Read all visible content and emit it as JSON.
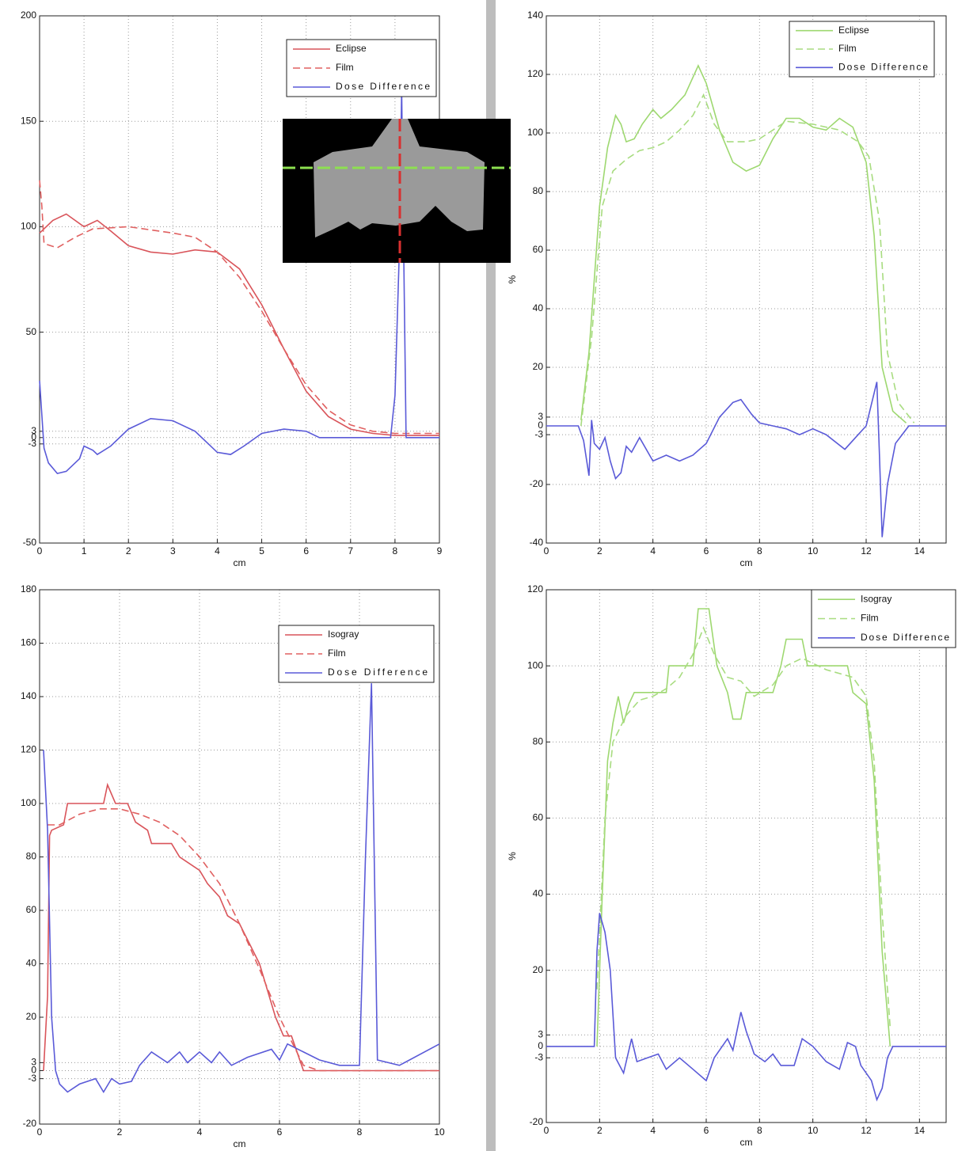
{
  "chart_data": [
    {
      "type": "line",
      "xlabel": "cm",
      "xlim": [
        0,
        9
      ],
      "ylim": [
        -50,
        200
      ],
      "xticks": [
        0,
        1,
        2,
        3,
        4,
        5,
        6,
        7,
        8,
        9
      ],
      "yticks": [
        -50,
        -3,
        0,
        3,
        50,
        100,
        150,
        200
      ],
      "grid": true,
      "legend": "upper right",
      "series": [
        {
          "name": "Eclipse",
          "color": "#d9545a",
          "dash": false,
          "x": [
            0,
            0.3,
            0.6,
            1.0,
            1.3,
            1.6,
            2.0,
            2.5,
            3.0,
            3.5,
            4.0,
            4.5,
            5.0,
            5.5,
            6.0,
            6.5,
            7.0,
            7.5,
            8.0,
            9.0
          ],
          "values": [
            97,
            103,
            106,
            100,
            103,
            98,
            91,
            88,
            87,
            89,
            88,
            80,
            63,
            42,
            22,
            10,
            4,
            2,
            1,
            1
          ]
        },
        {
          "name": "Film",
          "color": "#e06060",
          "dash": true,
          "x": [
            0,
            0.05,
            0.1,
            0.4,
            0.8,
            1.2,
            2.0,
            3.0,
            3.5,
            4.0,
            4.5,
            5.0,
            5.5,
            6.0,
            6.5,
            7.0,
            7.5,
            8.0,
            9.0
          ],
          "values": [
            122,
            110,
            92,
            90,
            95,
            99,
            100,
            97,
            95,
            88,
            76,
            60,
            42,
            25,
            13,
            6,
            3,
            2,
            2
          ]
        },
        {
          "name": "Dose Difference",
          "color": "#5a5ad8",
          "dash": false,
          "x": [
            0,
            0.1,
            0.2,
            0.4,
            0.6,
            0.9,
            1.0,
            1.2,
            1.3,
            1.6,
            2.0,
            2.5,
            3.0,
            3.5,
            4.0,
            4.3,
            4.6,
            5.0,
            5.5,
            6.0,
            6.3,
            7.0,
            7.9,
            8.0,
            8.1,
            8.15,
            8.25,
            9.0
          ],
          "values": [
            27,
            -5,
            -12,
            -17,
            -16,
            -10,
            -4,
            -6,
            -8,
            -4,
            4,
            9,
            8,
            3,
            -7,
            -8,
            -4,
            2,
            4,
            3,
            0,
            0,
            0,
            20,
            90,
            165,
            0,
            0
          ]
        }
      ]
    },
    {
      "type": "line",
      "xlabel": "cm",
      "ylabel": "%",
      "xlim": [
        0,
        15
      ],
      "ylim": [
        -40,
        140
      ],
      "xticks": [
        0,
        2,
        4,
        6,
        8,
        10,
        12,
        14
      ],
      "yticks": [
        -40,
        -20,
        -3,
        0,
        3,
        20,
        40,
        60,
        80,
        100,
        120,
        140
      ],
      "grid": true,
      "legend": "upper right",
      "series": [
        {
          "name": "Eclipse",
          "color": "#9ed870",
          "dash": false,
          "x": [
            1.3,
            1.6,
            2.0,
            2.3,
            2.6,
            2.8,
            3.0,
            3.3,
            3.6,
            4.0,
            4.3,
            4.7,
            5.2,
            5.7,
            6.0,
            6.5,
            7.0,
            7.5,
            8.0,
            8.5,
            9.0,
            9.5,
            10,
            10.5,
            11,
            11.5,
            12,
            12.3,
            12.6,
            13,
            13.5
          ],
          "values": [
            2,
            25,
            75,
            95,
            106,
            103,
            97,
            98,
            103,
            108,
            105,
            108,
            113,
            123,
            117,
            101,
            90,
            87,
            89,
            98,
            105,
            105,
            102,
            101,
            105,
            102,
            90,
            65,
            20,
            5,
            1
          ]
        },
        {
          "name": "Film",
          "color": "#a8dc80",
          "dash": true,
          "x": [
            1.3,
            1.7,
            2.1,
            2.5,
            3,
            3.5,
            4,
            4.5,
            5,
            5.5,
            5.9,
            6.3,
            6.8,
            7.5,
            8,
            8.5,
            9,
            10,
            11,
            11.7,
            12.1,
            12.5,
            12.8,
            13.2,
            13.8
          ],
          "values": [
            0,
            30,
            75,
            87,
            91,
            94,
            95,
            97,
            101,
            106,
            113,
            103,
            97,
            97,
            98,
            101,
            104,
            103,
            101,
            97,
            92,
            70,
            25,
            8,
            1
          ]
        },
        {
          "name": "Dose Difference",
          "color": "#5a5ad8",
          "dash": false,
          "x": [
            0,
            1.2,
            1.4,
            1.6,
            1.7,
            1.8,
            2.0,
            2.2,
            2.4,
            2.6,
            2.8,
            3.0,
            3.2,
            3.5,
            4.0,
            4.5,
            5.0,
            5.5,
            6.0,
            6.5,
            7.0,
            7.3,
            7.7,
            8.0,
            8.5,
            9.0,
            9.5,
            10,
            10.5,
            11.2,
            11.7,
            12.0,
            12.4,
            12.5,
            12.6,
            12.8,
            13.1,
            13.6,
            15
          ],
          "values": [
            0,
            0,
            -5,
            -17,
            2,
            -6,
            -8,
            -4,
            -12,
            -18,
            -16,
            -7,
            -9,
            -4,
            -12,
            -10,
            -12,
            -10,
            -6,
            3,
            8,
            9,
            4,
            1,
            0,
            -1,
            -3,
            -1,
            -3,
            -8,
            -3,
            0,
            15,
            -10,
            -38,
            -20,
            -6,
            0,
            0
          ]
        }
      ]
    },
    {
      "type": "line",
      "xlabel": "cm",
      "xlim": [
        0,
        10
      ],
      "ylim": [
        -20,
        180
      ],
      "xticks": [
        0,
        2,
        4,
        6,
        8,
        10
      ],
      "yticks": [
        -20,
        -3,
        0,
        3,
        20,
        40,
        60,
        80,
        100,
        120,
        140,
        160,
        180
      ],
      "grid": true,
      "legend": "upper right",
      "series": [
        {
          "name": "Isogray",
          "color": "#d9545a",
          "dash": false,
          "x": [
            0.1,
            0.2,
            0.25,
            0.3,
            0.6,
            0.7,
            1.6,
            1.7,
            1.9,
            2.2,
            2.4,
            2.7,
            2.8,
            3.3,
            3.5,
            4.0,
            4.2,
            4.5,
            4.7,
            5.0,
            5.5,
            5.9,
            6.1,
            6.3,
            6.6,
            10
          ],
          "values": [
            0,
            28,
            88,
            90,
            92,
            100,
            100,
            107,
            100,
            100,
            93,
            90,
            85,
            85,
            80,
            75,
            70,
            65,
            58,
            55,
            40,
            20,
            13,
            13,
            0,
            0
          ]
        },
        {
          "name": "Film",
          "color": "#e06060",
          "dash": true,
          "x": [
            0.2,
            0.5,
            1,
            1.5,
            2,
            2.5,
            3,
            3.5,
            4,
            4.5,
            5,
            5.5,
            6,
            6.4,
            6.6,
            7,
            10
          ],
          "values": [
            92,
            92,
            96,
            98,
            98,
            96,
            93,
            88,
            80,
            70,
            55,
            38,
            20,
            8,
            2,
            0,
            0
          ]
        },
        {
          "name": "Dose Difference",
          "color": "#5a5ad8",
          "dash": false,
          "x": [
            0.1,
            0.2,
            0.3,
            0.4,
            0.5,
            0.7,
            1,
            1.4,
            1.6,
            1.8,
            2,
            2.3,
            2.5,
            2.8,
            3.2,
            3.5,
            3.7,
            4.0,
            4.3,
            4.5,
            4.8,
            5.2,
            5.8,
            6.0,
            6.2,
            6.6,
            7.0,
            7.5,
            8.0,
            8.15,
            8.3,
            8.45,
            9.0,
            10.0
          ],
          "values": [
            120,
            90,
            20,
            0,
            -5,
            -8,
            -5,
            -3,
            -8,
            -3,
            -5,
            -4,
            2,
            7,
            3,
            7,
            3,
            7,
            3,
            7,
            2,
            5,
            8,
            4,
            10,
            7,
            4,
            2,
            2,
            80,
            145,
            4,
            2,
            10
          ]
        }
      ]
    },
    {
      "type": "line",
      "xlabel": "cm",
      "ylabel": "%",
      "xlim": [
        0,
        15
      ],
      "ylim": [
        -20,
        120
      ],
      "xticks": [
        0,
        2,
        4,
        6,
        8,
        10,
        12,
        14
      ],
      "yticks": [
        -20,
        -3,
        0,
        3,
        20,
        40,
        60,
        80,
        100,
        120
      ],
      "grid": true,
      "legend": "upper right",
      "series": [
        {
          "name": "Isogray",
          "color": "#9ed870",
          "dash": false,
          "x": [
            1.9,
            2.1,
            2.3,
            2.5,
            2.7,
            2.9,
            3.1,
            3.3,
            4.5,
            4.6,
            5.5,
            5.7,
            6.1,
            6.4,
            6.8,
            7.0,
            7.3,
            7.5,
            8.5,
            8.8,
            9.0,
            9.6,
            9.8,
            11.3,
            11.5,
            12.0,
            12.3,
            12.6,
            12.9
          ],
          "values": [
            0,
            40,
            75,
            85,
            92,
            85,
            90,
            93,
            93,
            100,
            100,
            115,
            115,
            100,
            93,
            86,
            86,
            93,
            93,
            100,
            107,
            107,
            100,
            100,
            93,
            90,
            70,
            25,
            0
          ]
        },
        {
          "name": "Film",
          "color": "#a8dc80",
          "dash": true,
          "x": [
            1.9,
            2.2,
            2.5,
            3,
            3.5,
            4,
            4.5,
            5,
            5.5,
            5.9,
            6.3,
            6.8,
            7.3,
            7.8,
            8.5,
            9,
            9.6,
            10.5,
            11.5,
            12,
            12.3,
            12.6,
            12.9
          ],
          "values": [
            15,
            60,
            80,
            87,
            91,
            92,
            94,
            97,
            103,
            110,
            103,
            97,
            96,
            92,
            95,
            100,
            102,
            99,
            97,
            92,
            75,
            35,
            5
          ]
        },
        {
          "name": "Dose Difference",
          "color": "#5a5ad8",
          "dash": false,
          "x": [
            0,
            1.8,
            1.9,
            2.0,
            2.2,
            2.4,
            2.6,
            2.9,
            3.2,
            3.4,
            3.8,
            4.2,
            4.5,
            5.0,
            5.5,
            6.0,
            6.3,
            6.8,
            7.0,
            7.3,
            7.5,
            7.8,
            8.2,
            8.5,
            8.8,
            9.3,
            9.6,
            10.0,
            10.5,
            11.0,
            11.3,
            11.6,
            11.8,
            12.2,
            12.4,
            12.6,
            12.8,
            13.0,
            15
          ],
          "values": [
            0,
            0,
            25,
            35,
            30,
            20,
            -3,
            -7,
            2,
            -4,
            -3,
            -2,
            -6,
            -3,
            -6,
            -9,
            -3,
            2,
            -1,
            9,
            4,
            -2,
            -4,
            -2,
            -5,
            -5,
            2,
            0,
            -4,
            -6,
            1,
            0,
            -5,
            -9,
            -14,
            -11,
            -3,
            0,
            0
          ]
        }
      ]
    }
  ]
}
